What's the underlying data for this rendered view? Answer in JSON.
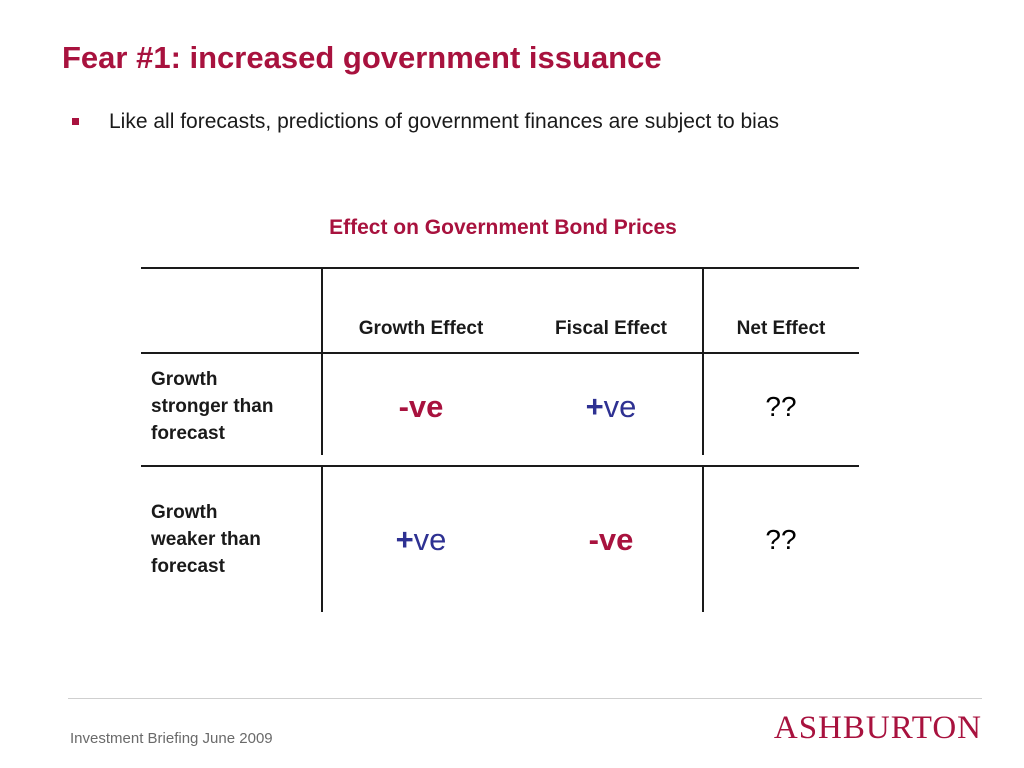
{
  "slide": {
    "title": "Fear #1: increased government issuance",
    "bullet": "Like all forecasts, predictions of government finances are subject to bias"
  },
  "table": {
    "title": "Effect on Government Bond Prices",
    "columns": [
      "Growth Effect",
      "Fiscal Effect",
      "Net Effect"
    ],
    "rows": [
      {
        "label": "Growth stronger than forecast",
        "label_lines": [
          "Growth",
          "stronger than",
          "forecast"
        ],
        "growth_effect": {
          "sign": "-",
          "text": "ve"
        },
        "fiscal_effect": {
          "sign": "+",
          "text": "ve"
        },
        "net_effect": "??"
      },
      {
        "label": "Growth weaker than forecast",
        "label_lines": [
          "Growth",
          "weaker than",
          "forecast"
        ],
        "growth_effect": {
          "sign": "+",
          "text": "ve"
        },
        "fiscal_effect": {
          "sign": "-",
          "text": "ve"
        },
        "net_effect": "??"
      }
    ]
  },
  "footer": {
    "text": "Investment Briefing June 2009",
    "logo": "ASHBURTON"
  },
  "colors": {
    "accent": "#a8123e",
    "positive": "#2e3192",
    "text": "#1a1a1a",
    "footer_text": "#6a6a6a"
  }
}
